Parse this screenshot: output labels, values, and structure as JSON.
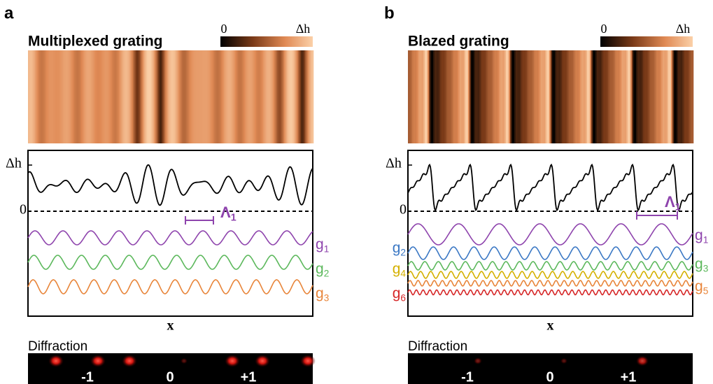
{
  "panels": [
    {
      "label": "a",
      "title": "Multiplexed grating",
      "colorbar": {
        "min": "0",
        "max": "Δh"
      },
      "plot": {
        "y_top": "Δh",
        "y_zero": "0",
        "period": {
          "symbol": "Λ",
          "index": "1"
        },
        "x_label": "x",
        "harmonics": [
          {
            "symbol": "g",
            "index": "1"
          },
          {
            "symbol": "g",
            "index": "2"
          },
          {
            "symbol": "g",
            "index": "3"
          }
        ]
      },
      "diffraction": {
        "title": "Diffraction",
        "orders": [
          "-1",
          "0",
          "+1"
        ]
      }
    },
    {
      "label": "b",
      "title": "Blazed grating",
      "colorbar": {
        "min": "0",
        "max": "Δh"
      },
      "plot": {
        "y_top": "Δh",
        "y_zero": "0",
        "period": {
          "symbol": "Λ",
          "index": "1"
        },
        "x_label": "x",
        "harmonics": [
          {
            "symbol": "g",
            "index": "1"
          },
          {
            "symbol": "g",
            "index": "2"
          },
          {
            "symbol": "g",
            "index": "3"
          },
          {
            "symbol": "g",
            "index": "4"
          },
          {
            "symbol": "g",
            "index": "5"
          },
          {
            "symbol": "g",
            "index": "6"
          }
        ]
      },
      "diffraction": {
        "title": "Diffraction",
        "orders": [
          "-1",
          "0",
          "+1"
        ]
      }
    }
  ]
}
